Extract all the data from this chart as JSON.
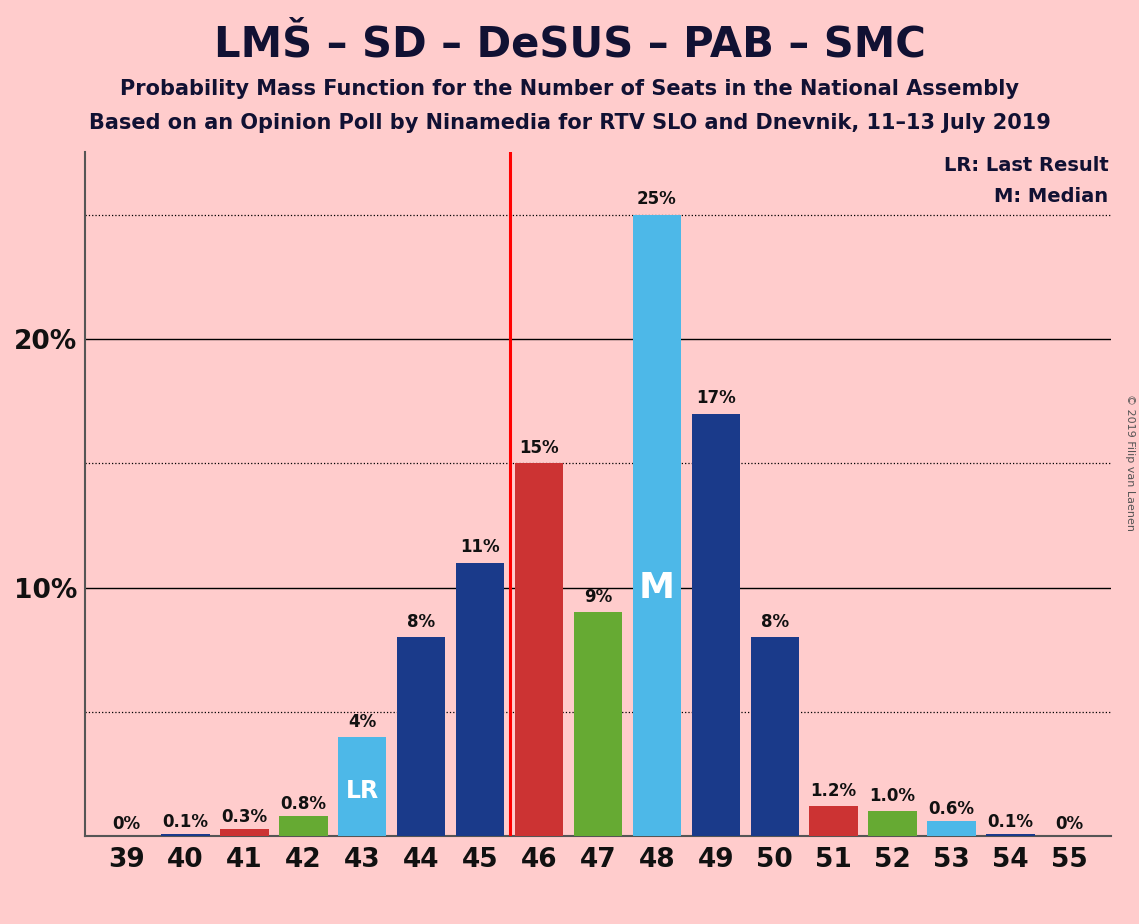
{
  "title": "LMŠ – SD – DeSUS – PAB – SMC",
  "subtitle1": "Probability Mass Function for the Number of Seats in the National Assembly",
  "subtitle2": "Based on an Opinion Poll by Ninamedia for RTV SLO and Dnevnik, 11–13 July 2019",
  "copyright": "© 2019 Filip van Laenen",
  "seats": [
    39,
    40,
    41,
    42,
    43,
    44,
    45,
    46,
    47,
    48,
    49,
    50,
    51,
    52,
    53,
    54,
    55
  ],
  "values": [
    0.0,
    0.1,
    0.3,
    0.8,
    4.0,
    8.0,
    11.0,
    15.0,
    9.0,
    25.0,
    17.0,
    8.0,
    1.2,
    1.0,
    0.6,
    0.1,
    0.0
  ],
  "labels": [
    "0%",
    "0.1%",
    "0.3%",
    "0.8%",
    "4%",
    "8%",
    "11%",
    "15%",
    "9%",
    "25%",
    "17%",
    "8%",
    "1.2%",
    "1.0%",
    "0.6%",
    "0.1%",
    "0%"
  ],
  "seat_colors": {
    "39": "#1a3a8a",
    "40": "#1a3a8a",
    "41": "#cc3333",
    "42": "#66aa33",
    "43": "#4db8e8",
    "44": "#1a3a8a",
    "45": "#1a3a8a",
    "46": "#cc3333",
    "47": "#66aa33",
    "48": "#4db8e8",
    "49": "#1a3a8a",
    "50": "#1a3a8a",
    "51": "#cc3333",
    "52": "#66aa33",
    "53": "#4db8e8",
    "54": "#1a3a8a",
    "55": "#1a3a8a"
  },
  "background_color": "#ffcccc",
  "major_gridlines_solid": [
    10,
    20
  ],
  "major_gridlines_dotted": [
    5,
    15,
    25
  ],
  "legend_lr": "LR: Last Result",
  "legend_m": "M: Median",
  "lr_label": "LR",
  "m_label": "M",
  "lr_seat": 43,
  "median_seat": 48,
  "vline_x": 45.5,
  "ylim_max": 27.5,
  "bar_width": 0.82
}
